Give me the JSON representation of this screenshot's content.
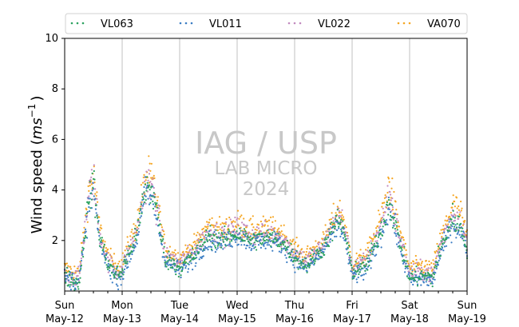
{
  "chart_data": {
    "type": "scatter",
    "title": "",
    "ylabel_main": "Wind speed (",
    "ylabel_unit": "ms",
    "ylabel_exp": "−1",
    "ylabel_close": ")",
    "xlabel": "",
    "ylim": [
      0,
      10
    ],
    "xlim": [
      "2024-05-12",
      "2024-05-19"
    ],
    "yticks": [
      "2",
      "4",
      "6",
      "8",
      "10"
    ],
    "xtick_days": [
      "Sun",
      "Mon",
      "Tue",
      "Wed",
      "Thu",
      "Fri",
      "Sat",
      "Sun"
    ],
    "xtick_dates": [
      "May-12",
      "May-13",
      "May-14",
      "May-15",
      "May-16",
      "May-17",
      "May-18",
      "May-19"
    ],
    "grid": "vertical lines at each day",
    "legend_position": "top",
    "watermark": {
      "line1": "IAG / USP",
      "line2": "LAB MICRO",
      "line3": "2024"
    },
    "series": [
      {
        "name": "VL063",
        "color": "#2ca25f",
        "profile": [
          [
            0,
            0.6
          ],
          [
            0.25,
            0.3
          ],
          [
            0.42,
            3.6
          ],
          [
            0.5,
            4.3
          ],
          [
            0.6,
            2.2
          ],
          [
            0.75,
            1.1
          ],
          [
            0.9,
            0.6
          ],
          [
            1.0,
            0.8
          ],
          [
            1.1,
            1.4
          ],
          [
            1.25,
            2.2
          ],
          [
            1.42,
            4.2
          ],
          [
            1.55,
            3.8
          ],
          [
            1.75,
            1.3
          ],
          [
            2.0,
            0.9
          ],
          [
            2.25,
            1.4
          ],
          [
            2.5,
            2.2
          ],
          [
            2.75,
            2.0
          ],
          [
            3.0,
            2.3
          ],
          [
            3.25,
            2.0
          ],
          [
            3.5,
            2.1
          ],
          [
            3.75,
            2.0
          ],
          [
            4.0,
            1.4
          ],
          [
            4.2,
            1.0
          ],
          [
            4.5,
            1.7
          ],
          [
            4.75,
            2.8
          ],
          [
            4.85,
            2.5
          ],
          [
            5.0,
            0.8
          ],
          [
            5.25,
            1.0
          ],
          [
            5.5,
            2.4
          ],
          [
            5.65,
            3.6
          ],
          [
            5.75,
            2.6
          ],
          [
            6.0,
            0.5
          ],
          [
            6.25,
            0.6
          ],
          [
            6.4,
            0.5
          ],
          [
            6.5,
            1.4
          ],
          [
            6.75,
            2.9
          ],
          [
            6.9,
            2.5
          ],
          [
            7.0,
            1.7
          ]
        ]
      },
      {
        "name": "VL011",
        "color": "#3b7dc4",
        "profile": [
          [
            0,
            0.5
          ],
          [
            0.25,
            0.4
          ],
          [
            0.42,
            3.3
          ],
          [
            0.5,
            4.0
          ],
          [
            0.6,
            2.0
          ],
          [
            0.75,
            1.0
          ],
          [
            0.9,
            0.5
          ],
          [
            1.0,
            0.6
          ],
          [
            1.1,
            1.2
          ],
          [
            1.25,
            2.0
          ],
          [
            1.42,
            4.0
          ],
          [
            1.55,
            3.5
          ],
          [
            1.75,
            1.2
          ],
          [
            2.0,
            0.8
          ],
          [
            2.25,
            1.3
          ],
          [
            2.5,
            2.0
          ],
          [
            2.75,
            1.9
          ],
          [
            3.0,
            2.2
          ],
          [
            3.25,
            1.9
          ],
          [
            3.5,
            2.0
          ],
          [
            3.75,
            1.9
          ],
          [
            4.0,
            1.2
          ],
          [
            4.2,
            0.9
          ],
          [
            4.5,
            1.6
          ],
          [
            4.75,
            2.6
          ],
          [
            4.85,
            2.3
          ],
          [
            5.0,
            0.6
          ],
          [
            5.25,
            0.8
          ],
          [
            5.5,
            2.2
          ],
          [
            5.65,
            3.4
          ],
          [
            5.75,
            2.4
          ],
          [
            6.0,
            0.4
          ],
          [
            6.25,
            0.5
          ],
          [
            6.4,
            0.4
          ],
          [
            6.5,
            1.2
          ],
          [
            6.75,
            2.7
          ],
          [
            6.9,
            2.3
          ],
          [
            7.0,
            1.6
          ]
        ]
      },
      {
        "name": "VL022",
        "color": "#c28bbf",
        "profile": [
          [
            0,
            0.7
          ],
          [
            0.25,
            0.5
          ],
          [
            0.42,
            3.8
          ],
          [
            0.5,
            4.5
          ],
          [
            0.6,
            2.3
          ],
          [
            0.75,
            1.2
          ],
          [
            0.9,
            0.7
          ],
          [
            1.0,
            0.9
          ],
          [
            1.1,
            1.5
          ],
          [
            1.25,
            2.3
          ],
          [
            1.42,
            4.4
          ],
          [
            1.55,
            3.9
          ],
          [
            1.75,
            1.4
          ],
          [
            2.0,
            1.1
          ],
          [
            2.25,
            1.6
          ],
          [
            2.5,
            2.4
          ],
          [
            2.75,
            2.2
          ],
          [
            3.0,
            2.5
          ],
          [
            3.25,
            2.2
          ],
          [
            3.5,
            2.3
          ],
          [
            3.75,
            2.2
          ],
          [
            4.0,
            1.5
          ],
          [
            4.2,
            1.2
          ],
          [
            4.5,
            1.8
          ],
          [
            4.75,
            3.0
          ],
          [
            4.85,
            2.7
          ],
          [
            5.0,
            0.9
          ],
          [
            5.25,
            1.2
          ],
          [
            5.5,
            2.6
          ],
          [
            5.65,
            3.9
          ],
          [
            5.75,
            2.8
          ],
          [
            6.0,
            0.7
          ],
          [
            6.25,
            0.8
          ],
          [
            6.4,
            0.6
          ],
          [
            6.5,
            1.6
          ],
          [
            6.75,
            3.1
          ],
          [
            6.9,
            2.7
          ],
          [
            7.0,
            1.9
          ]
        ]
      },
      {
        "name": "VA070",
        "color": "#f5a623",
        "profile": [
          [
            0,
            0.9
          ],
          [
            0.25,
            0.7
          ],
          [
            0.42,
            4.0
          ],
          [
            0.5,
            4.6
          ],
          [
            0.6,
            2.6
          ],
          [
            0.75,
            1.4
          ],
          [
            0.9,
            1.0
          ],
          [
            1.0,
            1.1
          ],
          [
            1.1,
            1.8
          ],
          [
            1.25,
            2.6
          ],
          [
            1.42,
            4.6
          ],
          [
            1.55,
            4.2
          ],
          [
            1.75,
            1.7
          ],
          [
            2.0,
            1.3
          ],
          [
            2.25,
            1.8
          ],
          [
            2.5,
            2.6
          ],
          [
            2.75,
            2.4
          ],
          [
            3.0,
            2.7
          ],
          [
            3.25,
            2.4
          ],
          [
            3.5,
            2.5
          ],
          [
            3.75,
            2.4
          ],
          [
            4.0,
            1.7
          ],
          [
            4.2,
            1.4
          ],
          [
            4.5,
            2.0
          ],
          [
            4.75,
            3.2
          ],
          [
            4.85,
            2.9
          ],
          [
            5.0,
            1.1
          ],
          [
            5.25,
            1.4
          ],
          [
            5.5,
            2.9
          ],
          [
            5.65,
            4.3
          ],
          [
            5.75,
            3.1
          ],
          [
            6.0,
            0.9
          ],
          [
            6.25,
            1.0
          ],
          [
            6.4,
            0.8
          ],
          [
            6.5,
            1.8
          ],
          [
            6.75,
            3.4
          ],
          [
            6.9,
            3.0
          ],
          [
            7.0,
            2.1
          ]
        ]
      }
    ]
  }
}
